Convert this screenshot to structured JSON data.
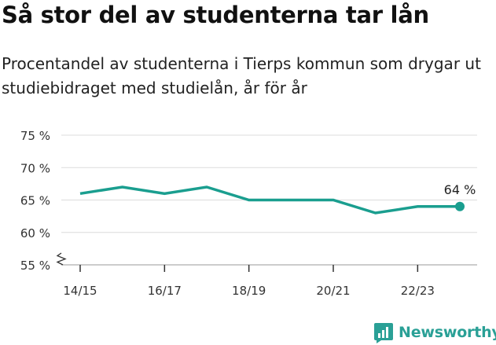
{
  "header": {
    "title": "Så stor del av studenterna tar lån",
    "subtitle": "Procentandel av studenterna i Tierps kommun som drygar ut studiebidraget med studielån, år för år"
  },
  "brand": {
    "name": "Newsworthy",
    "color": "#2aa096"
  },
  "chart_data": {
    "type": "line",
    "title": "Så stor del av studenterna tar lån",
    "subtitle": "Procentandel av studenterna i Tierps kommun som drygar ut studiebidraget med studielån, år för år",
    "x": [
      "14/15",
      "15/16",
      "16/17",
      "17/18",
      "18/19",
      "19/20",
      "20/21",
      "21/22",
      "22/23",
      "23/24"
    ],
    "x_tick_labels": [
      "14/15",
      "16/17",
      "18/19",
      "20/21",
      "22/23"
    ],
    "series": [
      {
        "values": [
          66,
          67,
          66,
          67,
          65,
          65,
          65,
          63,
          64,
          64
        ],
        "color": "#1a9e8f"
      }
    ],
    "y_ticks": [
      55,
      60,
      65,
      70,
      75
    ],
    "y_tick_labels": [
      "55 %",
      "60 %",
      "65 %",
      "70 %",
      "75 %"
    ],
    "ylim": [
      55,
      75
    ],
    "y_axis_break": true,
    "grid": true,
    "last_value_label": "64 %",
    "xlabel": "",
    "ylabel": ""
  }
}
